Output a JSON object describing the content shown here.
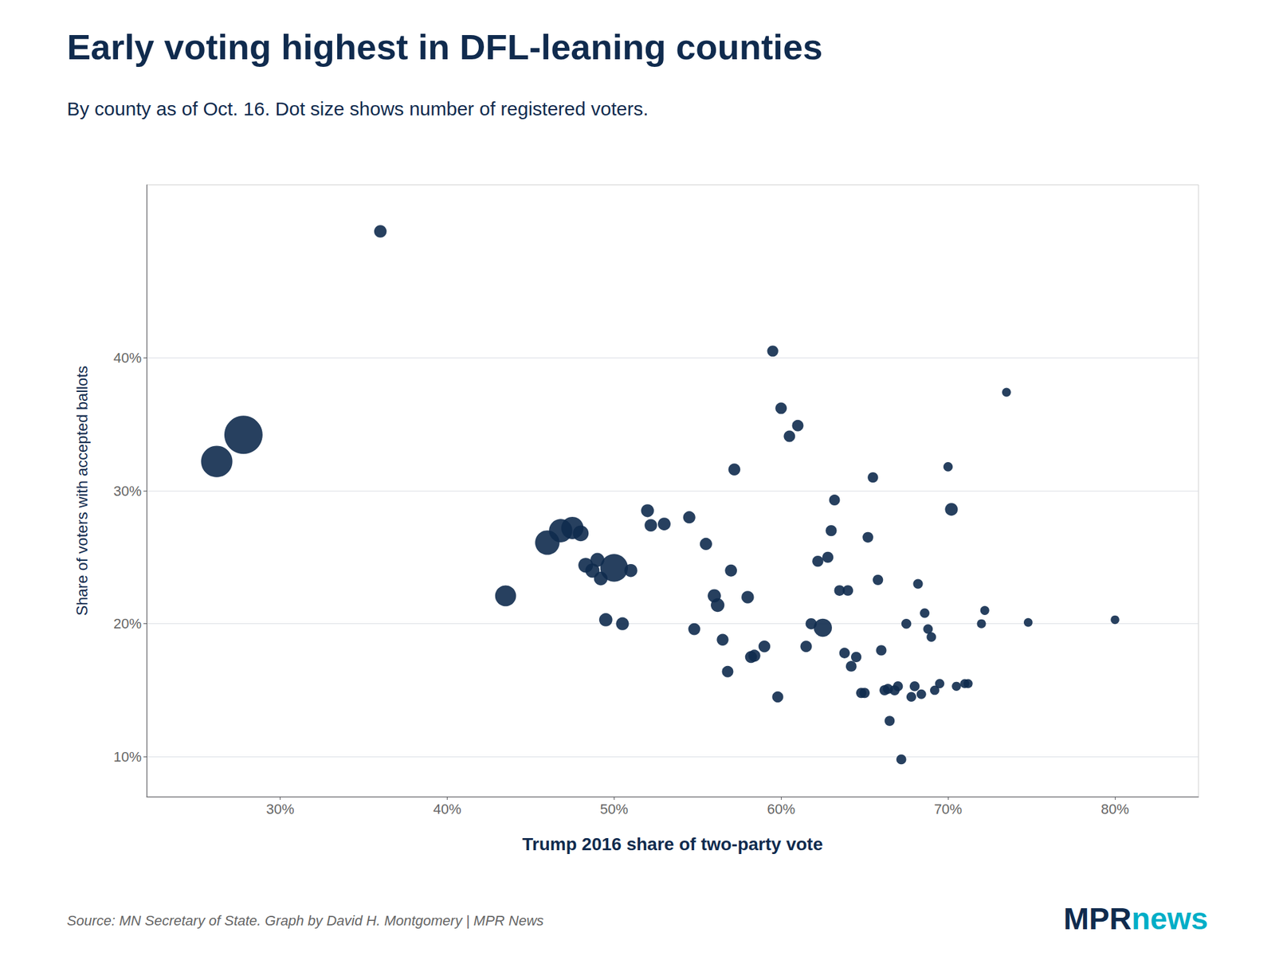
{
  "chart_data": {
    "type": "scatter",
    "title": "Early voting highest in DFL-leaning counties",
    "subtitle": "By county as of Oct. 16. Dot size shows number of registered voters.",
    "xlabel": "Trump 2016 share of two-party vote",
    "ylabel": "Share of voters with accepted ballots",
    "source": "Source: MN Secretary of State. Graph by David H. Montgomery | MPR News",
    "annotations": [
      {
        "text": "MPR",
        "color": "#102b4e"
      },
      {
        "text": "news",
        "color": "#00aec7"
      }
    ],
    "color": "#102b4e",
    "grid": "y",
    "xlim": [
      0.22,
      0.85
    ],
    "ylim": [
      0.07,
      0.53
    ],
    "xticks": [
      {
        "value": 0.3,
        "label": "30%"
      },
      {
        "value": 0.4,
        "label": "40%"
      },
      {
        "value": 0.5,
        "label": "50%"
      },
      {
        "value": 0.6,
        "label": "60%"
      },
      {
        "value": 0.7,
        "label": "70%"
      },
      {
        "value": 0.8,
        "label": "80%"
      }
    ],
    "yticks": [
      {
        "value": 0.1,
        "label": "10%"
      },
      {
        "value": 0.2,
        "label": "20%"
      },
      {
        "value": 0.3,
        "label": "30%"
      },
      {
        "value": 0.4,
        "label": "40%"
      }
    ],
    "x": [
      0.262,
      0.278,
      0.36,
      0.435,
      0.46,
      0.468,
      0.475,
      0.48,
      0.483,
      0.487,
      0.49,
      0.492,
      0.495,
      0.5,
      0.505,
      0.51,
      0.52,
      0.522,
      0.53,
      0.545,
      0.548,
      0.555,
      0.56,
      0.562,
      0.565,
      0.568,
      0.57,
      0.572,
      0.58,
      0.582,
      0.584,
      0.59,
      0.595,
      0.598,
      0.6,
      0.605,
      0.61,
      0.615,
      0.618,
      0.622,
      0.625,
      0.628,
      0.63,
      0.632,
      0.635,
      0.638,
      0.64,
      0.642,
      0.645,
      0.648,
      0.65,
      0.652,
      0.655,
      0.658,
      0.66,
      0.662,
      0.664,
      0.665,
      0.668,
      0.67,
      0.672,
      0.675,
      0.678,
      0.68,
      0.682,
      0.684,
      0.686,
      0.688,
      0.69,
      0.692,
      0.695,
      0.7,
      0.702,
      0.705,
      0.71,
      0.712,
      0.72,
      0.722,
      0.735,
      0.748,
      0.8
    ],
    "values": [
      0.322,
      0.342,
      0.495,
      0.221,
      0.261,
      0.27,
      0.272,
      0.268,
      0.244,
      0.24,
      0.248,
      0.234,
      0.203,
      0.242,
      0.2,
      0.24,
      0.285,
      0.274,
      0.275,
      0.28,
      0.196,
      0.26,
      0.221,
      0.214,
      0.188,
      0.164,
      0.24,
      0.316,
      0.22,
      0.175,
      0.176,
      0.183,
      0.405,
      0.145,
      0.362,
      0.341,
      0.349,
      0.183,
      0.2,
      0.247,
      0.197,
      0.25,
      0.27,
      0.293,
      0.225,
      0.178,
      0.225,
      0.168,
      0.175,
      0.148,
      0.148,
      0.265,
      0.31,
      0.233,
      0.18,
      0.15,
      0.151,
      0.127,
      0.15,
      0.153,
      0.098,
      0.2,
      0.145,
      0.153,
      0.23,
      0.147,
      0.208,
      0.196,
      0.19,
      0.15,
      0.155,
      0.318,
      0.286,
      0.153,
      0.155,
      0.155,
      0.2,
      0.21,
      0.374,
      0.201,
      0.203
    ],
    "sizes": [
      140000,
      310000,
      3500,
      28000,
      52000,
      43000,
      36000,
      9000,
      7000,
      6000,
      5500,
      5000,
      4500,
      85000,
      4000,
      4200,
      4000,
      3500,
      3800,
      3300,
      3000,
      3300,
      4500,
      5000,
      2800,
      2500,
      3000,
      3000,
      3500,
      3000,
      3000,
      2800,
      2200,
      2200,
      2500,
      2500,
      2500,
      2500,
      2300,
      2200,
      16000,
      2200,
      2200,
      2000,
      1900,
      1800,
      1800,
      1900,
      1700,
      1600,
      1600,
      1900,
      1700,
      1700,
      1700,
      1600,
      1500,
      1500,
      1500,
      1400,
      1400,
      1400,
      1300,
      1400,
      1300,
      1200,
      1200,
      1200,
      1200,
      1100,
      1100,
      1100,
      3800,
      1000,
      1000,
      1000,
      950,
      950,
      900,
      850,
      800
    ]
  }
}
